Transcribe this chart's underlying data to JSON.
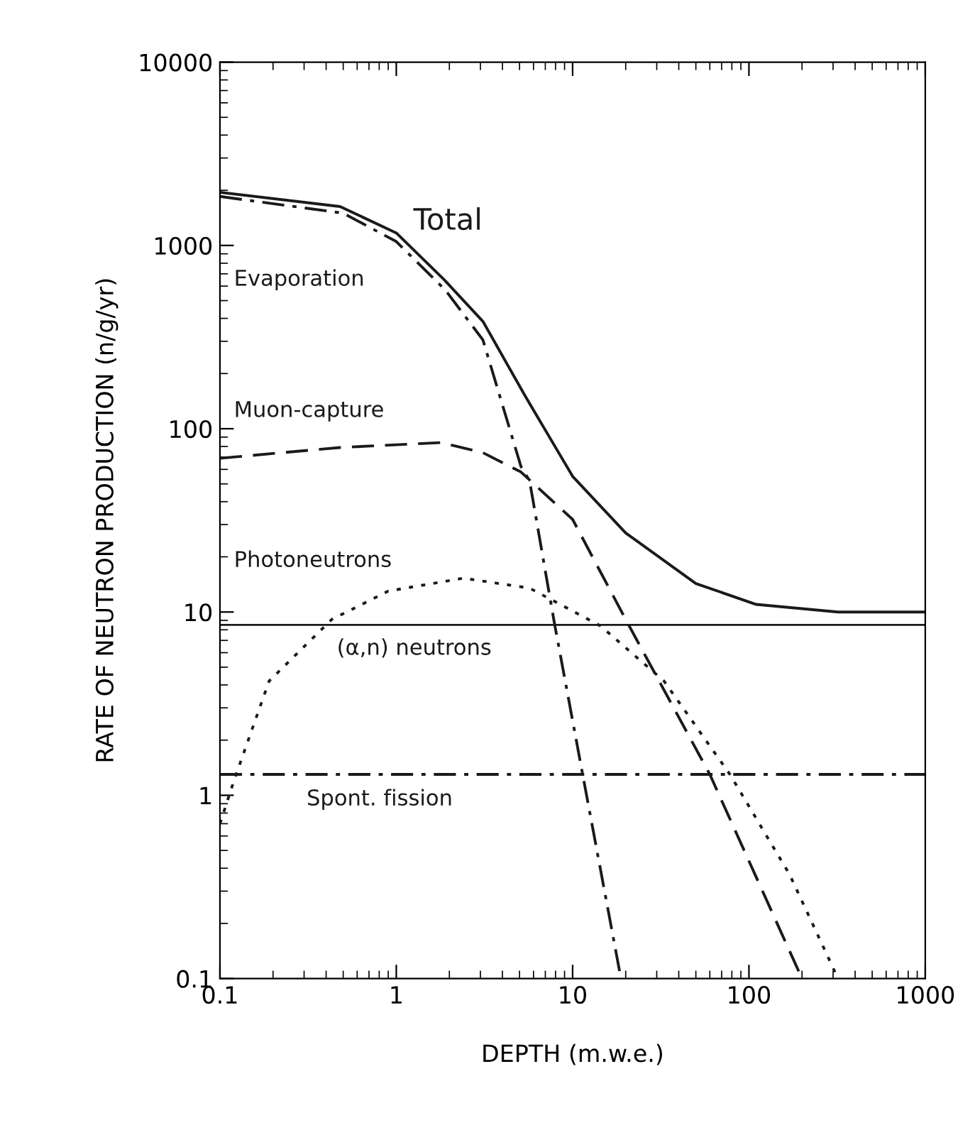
{
  "chart_data": {
    "type": "line",
    "xlabel": "DEPTH (m.w.e.)",
    "ylabel": "RATE OF NEUTRON PRODUCTION (n/g/yr)",
    "log": "xy",
    "xlim": [
      0.1,
      1000
    ],
    "ylim": [
      0.1,
      10000
    ],
    "xticks": [
      {
        "value": 0.1,
        "label": "0.1"
      },
      1,
      10,
      100,
      1000
    ],
    "yticks": [
      {
        "value": 0.1,
        "label": "0.1"
      },
      1,
      10,
      100,
      1000,
      10000
    ],
    "grid": false,
    "legend": false,
    "series": [
      {
        "name": "Total",
        "color": "#1a1a1a",
        "line_style": "solid",
        "x": [
          0.1,
          0.48,
          1.0,
          1.87,
          3.1,
          5.4,
          10,
          20,
          50,
          110,
          320,
          1000
        ],
        "values": [
          1950,
          1630,
          1170,
          650,
          385,
          150,
          55,
          27,
          14.3,
          11,
          10,
          10
        ]
      },
      {
        "name": "Evaporation",
        "color": "#1a1a1a",
        "line_style": "dashdot",
        "x": [
          0.1,
          0.5,
          1.0,
          1.9,
          3.1,
          5.1,
          5.7,
          7.9,
          11.4,
          18.8
        ],
        "values": [
          1850,
          1500,
          1050,
          570,
          305,
          62,
          52,
          8.6,
          1.3,
          0.1
        ]
      },
      {
        "name": "Muon-capture",
        "color": "#1a1a1a",
        "line_style": "dashed",
        "x": [
          0.1,
          0.48,
          1.8,
          3.1,
          5.1,
          10,
          20,
          60,
          200
        ],
        "values": [
          69,
          79,
          84,
          74,
          58,
          32,
          9.1,
          1.3,
          0.1
        ]
      },
      {
        "name": "Photoneutrons",
        "color": "#1a1a1a",
        "line_style": "dotted",
        "x": [
          0.1,
          0.12,
          0.19,
          0.43,
          0.9,
          2.4,
          5.7,
          14.4,
          33,
          78,
          170,
          320
        ],
        "values": [
          0.7,
          1.2,
          4.2,
          9.1,
          13,
          15.3,
          13.5,
          8.4,
          4.2,
          1.3,
          0.37,
          0.1
        ]
      },
      {
        "name": "(α,n) neutrons",
        "color": "#1a1a1a",
        "line_style": "solid",
        "x": [
          0.1,
          1000
        ],
        "values": [
          8.5,
          8.5
        ]
      },
      {
        "name": "Spont. fission",
        "color": "#1a1a1a",
        "line_style": "dashdot",
        "x": [
          0.1,
          1000
        ],
        "values": [
          1.3,
          1.3
        ]
      }
    ]
  }
}
